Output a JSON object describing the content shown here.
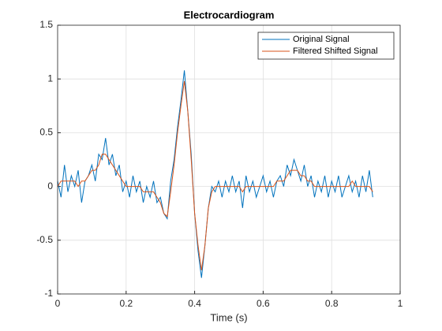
{
  "chart_data": {
    "type": "line",
    "title": "Electrocardiogram",
    "xlabel": "Time (s)",
    "x": [
      0,
      0.01,
      0.02,
      0.03,
      0.04,
      0.05,
      0.06,
      0.07,
      0.08,
      0.09,
      0.1,
      0.11,
      0.12,
      0.13,
      0.14,
      0.15,
      0.16,
      0.17,
      0.18,
      0.19,
      0.2,
      0.21,
      0.22,
      0.23,
      0.24,
      0.25,
      0.26,
      0.27,
      0.28,
      0.29,
      0.3,
      0.31,
      0.32,
      0.33,
      0.34,
      0.35,
      0.36,
      0.37,
      0.38,
      0.39,
      0.4,
      0.41,
      0.42,
      0.43,
      0.44,
      0.45,
      0.46,
      0.47,
      0.48,
      0.49,
      0.5,
      0.51,
      0.52,
      0.53,
      0.54,
      0.55,
      0.56,
      0.57,
      0.58,
      0.59,
      0.6,
      0.61,
      0.62,
      0.63,
      0.64,
      0.65,
      0.66,
      0.67,
      0.68,
      0.69,
      0.7,
      0.71,
      0.72,
      0.73,
      0.74,
      0.75,
      0.76,
      0.77,
      0.78,
      0.79,
      0.8,
      0.81,
      0.82,
      0.83,
      0.84,
      0.85,
      0.86,
      0.87,
      0.88,
      0.89,
      0.9,
      0.91,
      0.92
    ],
    "series": [
      {
        "name": "Original Signal",
        "color": "#0072BD",
        "values": [
          0.05,
          -0.1,
          0.2,
          -0.05,
          0.1,
          0.0,
          0.15,
          -0.15,
          0.05,
          0.1,
          0.2,
          0.05,
          0.3,
          0.25,
          0.45,
          0.2,
          0.3,
          0.1,
          0.2,
          -0.05,
          0.05,
          -0.1,
          0.1,
          -0.05,
          0.05,
          -0.15,
          0.0,
          -0.1,
          0.05,
          -0.15,
          -0.1,
          -0.25,
          -0.3,
          0.05,
          0.25,
          0.55,
          0.8,
          1.08,
          0.7,
          0.3,
          -0.25,
          -0.6,
          -0.85,
          -0.55,
          -0.2,
          0.0,
          -0.05,
          0.05,
          -0.1,
          0.05,
          -0.05,
          0.1,
          -0.05,
          0.05,
          -0.2,
          0.1,
          -0.05,
          0.05,
          -0.1,
          0.0,
          0.1,
          -0.05,
          0.05,
          -0.1,
          0.05,
          0.1,
          0.0,
          0.2,
          0.1,
          0.25,
          0.15,
          0.05,
          0.2,
          0.0,
          0.1,
          -0.1,
          0.05,
          -0.05,
          0.1,
          -0.1,
          0.05,
          -0.05,
          0.1,
          -0.1,
          0.0,
          0.1,
          -0.05,
          0.05,
          -0.1,
          0.1,
          -0.05,
          0.15,
          -0.1
        ]
      },
      {
        "name": "Filtered Shifted Signal",
        "color": "#D95319",
        "values": [
          0.0,
          0.05,
          0.05,
          0.05,
          0.05,
          0.05,
          0.0,
          0.05,
          0.05,
          0.1,
          0.15,
          0.15,
          0.2,
          0.3,
          0.3,
          0.25,
          0.2,
          0.15,
          0.1,
          0.05,
          0.0,
          0.0,
          0.0,
          0.0,
          0.0,
          -0.05,
          -0.05,
          -0.05,
          -0.05,
          -0.1,
          -0.15,
          -0.25,
          -0.28,
          -0.05,
          0.2,
          0.5,
          0.75,
          0.98,
          0.7,
          0.25,
          -0.25,
          -0.55,
          -0.78,
          -0.55,
          -0.2,
          -0.05,
          0.0,
          0.0,
          0.0,
          0.0,
          0.0,
          0.0,
          0.0,
          0.0,
          -0.05,
          0.0,
          0.0,
          0.0,
          0.0,
          0.0,
          0.0,
          0.0,
          0.0,
          0.0,
          0.05,
          0.05,
          0.05,
          0.1,
          0.15,
          0.15,
          0.15,
          0.1,
          0.1,
          0.05,
          0.05,
          0.0,
          0.0,
          0.0,
          0.0,
          0.0,
          0.0,
          0.0,
          0.0,
          0.0,
          0.0,
          0.0,
          0.05,
          0.0,
          0.0,
          0.0,
          0.0,
          0.0,
          -0.05
        ]
      }
    ],
    "xlim": [
      0,
      1
    ],
    "xticks": [
      0,
      0.2,
      0.4,
      0.6,
      0.8,
      1
    ],
    "ylim": [
      -1,
      1.5
    ],
    "yticks": [
      -1,
      -0.5,
      0,
      0.5,
      1,
      1.5
    ],
    "grid": true,
    "legend": "northeast"
  }
}
